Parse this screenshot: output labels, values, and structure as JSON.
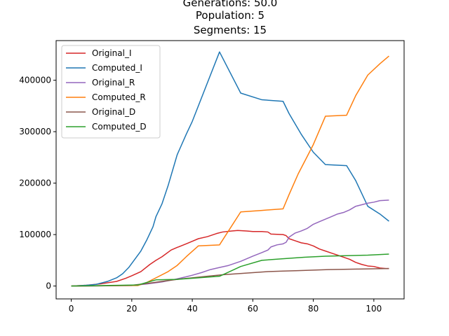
{
  "chart_data": {
    "type": "line",
    "title_lines": [
      "Generations: 50.0",
      "Population: 5",
      "Segments: 15"
    ],
    "xlabel": "",
    "ylabel": "",
    "xlim": [
      -5,
      110
    ],
    "ylim": [
      -25000,
      477000
    ],
    "x_ticks": [
      0,
      20,
      40,
      60,
      80,
      100
    ],
    "y_ticks": [
      0,
      100000,
      200000,
      300000,
      400000
    ],
    "grid": false,
    "legend_position": "top-left",
    "series": [
      {
        "name": "Original_I",
        "color": "#d62728",
        "points": [
          [
            0,
            0
          ],
          [
            5,
            1500
          ],
          [
            10,
            4500
          ],
          [
            15,
            9000
          ],
          [
            18,
            15000
          ],
          [
            20,
            20000
          ],
          [
            23,
            28000
          ],
          [
            26,
            42000
          ],
          [
            28,
            50000
          ],
          [
            30,
            57000
          ],
          [
            33,
            70000
          ],
          [
            35,
            75000
          ],
          [
            38,
            82000
          ],
          [
            40,
            87000
          ],
          [
            42,
            92000
          ],
          [
            45,
            96000
          ],
          [
            48,
            102000
          ],
          [
            50,
            105000
          ],
          [
            53,
            107000
          ],
          [
            55,
            108000
          ],
          [
            58,
            107000
          ],
          [
            60,
            106000
          ],
          [
            63,
            106000
          ],
          [
            65,
            105000
          ],
          [
            66,
            101000
          ],
          [
            70,
            100000
          ],
          [
            71,
            98000
          ],
          [
            72,
            92000
          ],
          [
            74,
            88000
          ],
          [
            76,
            84000
          ],
          [
            78,
            82000
          ],
          [
            80,
            78000
          ],
          [
            82,
            72000
          ],
          [
            84,
            68000
          ],
          [
            86,
            64000
          ],
          [
            88,
            60000
          ],
          [
            90,
            56000
          ],
          [
            92,
            52000
          ],
          [
            94,
            46000
          ],
          [
            96,
            42000
          ],
          [
            98,
            39000
          ],
          [
            100,
            38000
          ],
          [
            102,
            35000
          ],
          [
            104,
            34000
          ],
          [
            105,
            34000
          ]
        ]
      },
      {
        "name": "Computed_I",
        "color": "#1f77b4",
        "points": [
          [
            0,
            0
          ],
          [
            5,
            1500
          ],
          [
            8,
            3000
          ],
          [
            10,
            6000
          ],
          [
            12,
            9000
          ],
          [
            15,
            16000
          ],
          [
            17,
            24000
          ],
          [
            19,
            36000
          ],
          [
            21,
            52000
          ],
          [
            23,
            68000
          ],
          [
            25,
            90000
          ],
          [
            27,
            115000
          ],
          [
            28,
            135000
          ],
          [
            30,
            160000
          ],
          [
            32,
            195000
          ],
          [
            34,
            235000
          ],
          [
            35,
            255000
          ],
          [
            38,
            295000
          ],
          [
            40,
            320000
          ],
          [
            42,
            350000
          ],
          [
            45,
            395000
          ],
          [
            49,
            455000
          ],
          [
            56,
            375000
          ],
          [
            63,
            362000
          ],
          [
            70,
            359000
          ],
          [
            72,
            335000
          ],
          [
            76,
            295000
          ],
          [
            80,
            260000
          ],
          [
            84,
            236000
          ],
          [
            91,
            234000
          ],
          [
            94,
            205000
          ],
          [
            98,
            155000
          ],
          [
            102,
            140000
          ],
          [
            105,
            126000
          ]
        ]
      },
      {
        "name": "Original_R",
        "color": "#9467bd",
        "points": [
          [
            0,
            0
          ],
          [
            20,
            1000
          ],
          [
            25,
            4000
          ],
          [
            30,
            8000
          ],
          [
            35,
            14000
          ],
          [
            38,
            18000
          ],
          [
            40,
            21000
          ],
          [
            43,
            26000
          ],
          [
            46,
            32000
          ],
          [
            49,
            36000
          ],
          [
            52,
            40000
          ],
          [
            56,
            48000
          ],
          [
            60,
            58000
          ],
          [
            63,
            65000
          ],
          [
            65,
            70000
          ],
          [
            66,
            76000
          ],
          [
            68,
            80000
          ],
          [
            70,
            82000
          ],
          [
            71,
            85000
          ],
          [
            72,
            95000
          ],
          [
            74,
            103000
          ],
          [
            76,
            107000
          ],
          [
            78,
            112000
          ],
          [
            80,
            120000
          ],
          [
            82,
            125000
          ],
          [
            84,
            130000
          ],
          [
            86,
            135000
          ],
          [
            88,
            140000
          ],
          [
            90,
            143000
          ],
          [
            92,
            148000
          ],
          [
            94,
            155000
          ],
          [
            96,
            158000
          ],
          [
            98,
            161000
          ],
          [
            100,
            163000
          ],
          [
            102,
            166000
          ],
          [
            105,
            167000
          ]
        ]
      },
      {
        "name": "Computed_R",
        "color": "#ff7f0e",
        "points": [
          [
            0,
            0
          ],
          [
            22,
            1000
          ],
          [
            25,
            7000
          ],
          [
            28,
            16000
          ],
          [
            32,
            28000
          ],
          [
            35,
            40000
          ],
          [
            38,
            57000
          ],
          [
            42,
            78000
          ],
          [
            49,
            80000
          ],
          [
            56,
            144000
          ],
          [
            63,
            147000
          ],
          [
            70,
            150000
          ],
          [
            72,
            178000
          ],
          [
            75,
            218000
          ],
          [
            78,
            252000
          ],
          [
            80,
            275000
          ],
          [
            84,
            330000
          ],
          [
            91,
            332000
          ],
          [
            94,
            370000
          ],
          [
            98,
            410000
          ],
          [
            102,
            432000
          ],
          [
            105,
            447000
          ]
        ]
      },
      {
        "name": "Original_D",
        "color": "#8c564b",
        "points": [
          [
            0,
            0
          ],
          [
            10,
            300
          ],
          [
            20,
            1500
          ],
          [
            25,
            5000
          ],
          [
            30,
            9000
          ],
          [
            35,
            13000
          ],
          [
            40,
            16000
          ],
          [
            45,
            19000
          ],
          [
            50,
            22000
          ],
          [
            55,
            24000
          ],
          [
            60,
            26000
          ],
          [
            65,
            28000
          ],
          [
            70,
            29000
          ],
          [
            75,
            30000
          ],
          [
            80,
            31000
          ],
          [
            85,
            32000
          ],
          [
            90,
            32500
          ],
          [
            95,
            33000
          ],
          [
            100,
            33500
          ],
          [
            105,
            34000
          ]
        ]
      },
      {
        "name": "Computed_D",
        "color": "#2ca02c",
        "points": [
          [
            0,
            0
          ],
          [
            22,
            2000
          ],
          [
            28,
            12000
          ],
          [
            35,
            13000
          ],
          [
            42,
            16000
          ],
          [
            49,
            19000
          ],
          [
            56,
            38000
          ],
          [
            63,
            50000
          ],
          [
            70,
            53000
          ],
          [
            77,
            56000
          ],
          [
            84,
            58000
          ],
          [
            91,
            59000
          ],
          [
            98,
            60000
          ],
          [
            105,
            62000
          ]
        ]
      }
    ]
  }
}
